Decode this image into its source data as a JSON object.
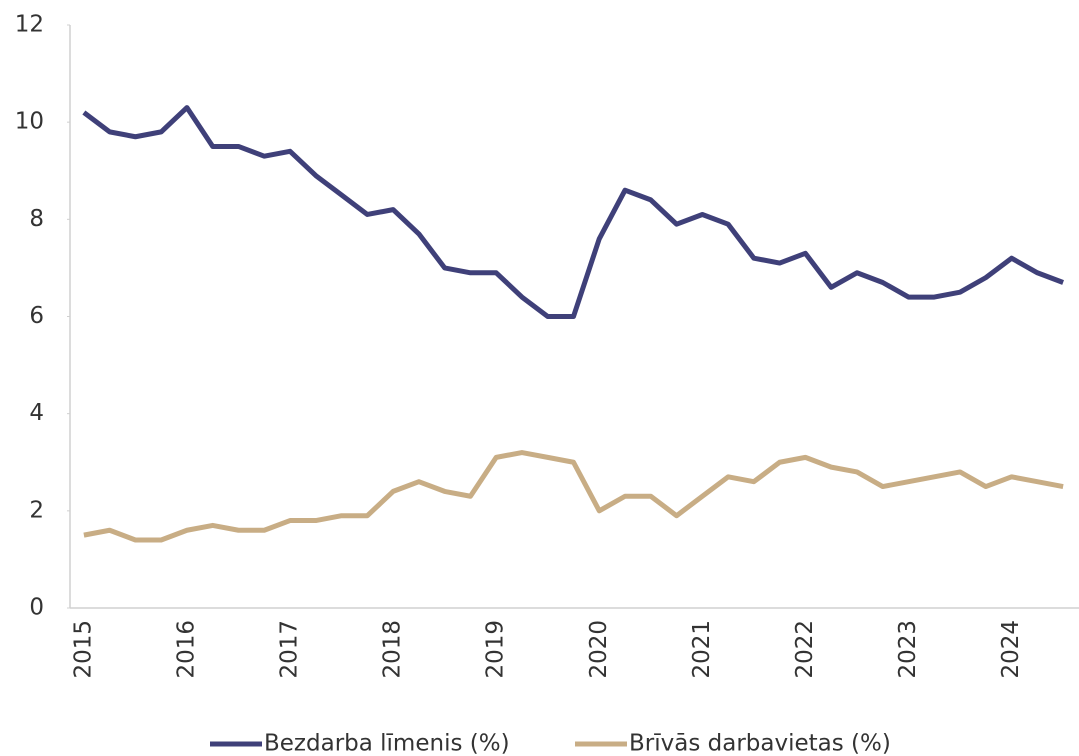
{
  "chart_data": {
    "type": "line",
    "categories": [
      "2015",
      null,
      null,
      null,
      "2016",
      null,
      null,
      null,
      "2017",
      null,
      null,
      null,
      "2018",
      null,
      null,
      null,
      "2019",
      null,
      null,
      null,
      "2020",
      null,
      null,
      null,
      "2021",
      null,
      null,
      null,
      "2022",
      null,
      null,
      null,
      "2023",
      null,
      null,
      null,
      "2024",
      null,
      null
    ],
    "series": [
      {
        "name": "Bezdarba līmenis (%)",
        "color": "#3f4079",
        "values": [
          10.2,
          9.8,
          9.7,
          9.8,
          10.3,
          9.5,
          9.5,
          9.3,
          9.4,
          8.9,
          8.5,
          8.1,
          8.2,
          7.7,
          7.0,
          6.9,
          6.9,
          6.4,
          6.0,
          6.0,
          7.6,
          8.6,
          8.4,
          7.9,
          8.1,
          7.9,
          7.2,
          7.1,
          7.3,
          6.6,
          6.9,
          6.7,
          6.4,
          6.4,
          6.5,
          6.8,
          7.2,
          6.9,
          6.7
        ]
      },
      {
        "name": "Brīvās darbavietas (%)",
        "color": "#c8ad85",
        "values": [
          1.5,
          1.6,
          1.4,
          1.4,
          1.6,
          1.7,
          1.6,
          1.6,
          1.8,
          1.8,
          1.9,
          1.9,
          2.4,
          2.6,
          2.4,
          2.3,
          3.1,
          3.2,
          3.1,
          3.0,
          2.0,
          2.3,
          2.3,
          1.9,
          2.3,
          2.7,
          2.6,
          3.0,
          3.1,
          2.9,
          2.8,
          2.5,
          2.6,
          2.7,
          2.8,
          2.5,
          2.7,
          2.6,
          2.5
        ]
      }
    ],
    "ylim": [
      0,
      12
    ],
    "yticks": [
      0,
      2,
      4,
      6,
      8,
      10,
      12
    ],
    "legend": "bottom"
  }
}
